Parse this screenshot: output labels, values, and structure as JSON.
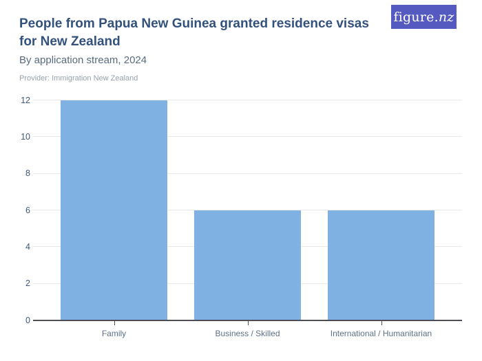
{
  "logo": {
    "text_main": "figure.",
    "text_accent": "nz",
    "bg_color": "#555ac0"
  },
  "header": {
    "title": "People from Papua New Guinea granted residence visas for New Zealand",
    "subtitle": "By application stream, 2024",
    "provider": "Provider: Immigration New Zealand"
  },
  "chart_data": {
    "type": "bar",
    "title": "People from Papua New Guinea granted residence visas for New Zealand",
    "subtitle": "By application stream, 2024",
    "categories": [
      "Family",
      "Business / Skilled",
      "International / Humanitarian"
    ],
    "values": [
      12,
      6,
      6
    ],
    "xlabel": "",
    "ylabel": "",
    "ylim": [
      0,
      12
    ],
    "yticks": [
      0,
      2,
      4,
      6,
      8,
      10,
      12
    ],
    "grid": true,
    "legend": false,
    "bar_color": "#7fb2e3",
    "gridline_color": "#e9e9e9",
    "axis_color": "#4d4d55",
    "ytick_color": "#41587a",
    "xtick_color": "#5d7186"
  }
}
